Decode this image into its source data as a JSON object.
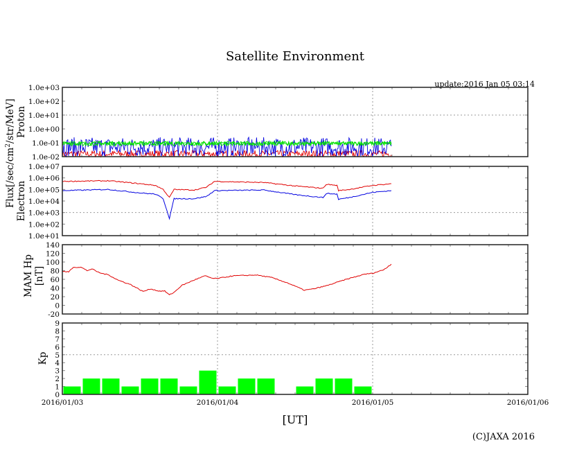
{
  "title": "Satellite Environment",
  "update": "update:2016 Jan 05 03:14",
  "copyright": "(C)JAXA 2016",
  "xlabel": "[UT]",
  "ylabel_flux": "Flux[/sec/cm",
  "ylabel_flux_sup": "2",
  "ylabel_flux_tail": "/str/MeV]",
  "colors": {
    "red": "#e00000",
    "blue": "#0000e0",
    "green": "#00e000",
    "kp": "#00ff00"
  },
  "chart_data": [
    {
      "type": "line",
      "name": "proton",
      "ylabel": "Proton",
      "yscale": "log",
      "ylim": [
        0.01,
        1000
      ],
      "yticks": [
        "1.0e-02",
        "1.0e-01",
        "1.0e+00",
        "1.0e+01",
        "1.0e+02",
        "1.0e+03"
      ],
      "xlim_days": [
        0,
        3
      ],
      "series": [
        {
          "name": "green",
          "color": "#00e000",
          "log_level": -1.05,
          "log_spread": 0.15,
          "end_day": 2.12
        },
        {
          "name": "blue",
          "color": "#0000e0",
          "log_level": -1.3,
          "log_spread": 0.7,
          "end_day": 2.12
        },
        {
          "name": "red",
          "color": "#e00000",
          "log_level": -1.8,
          "log_spread": 0.25,
          "end_day": 2.12
        }
      ]
    },
    {
      "type": "line",
      "name": "electron",
      "ylabel": "Electron",
      "yscale": "log",
      "ylim": [
        10,
        10000000
      ],
      "yticks": [
        "1.0e+01",
        "1.0e+02",
        "1.0e+03",
        "1.0e+04",
        "1.0e+05",
        "1.0e+06",
        "1.0e+07"
      ],
      "series": [
        {
          "name": "red",
          "color": "#e00000",
          "points_log": [
            [
              0,
              5.7
            ],
            [
              0.3,
              5.75
            ],
            [
              0.5,
              5.5
            ],
            [
              0.6,
              5.35
            ],
            [
              0.65,
              5.0
            ],
            [
              0.69,
              4.3
            ],
            [
              0.72,
              5.0
            ],
            [
              0.85,
              4.95
            ],
            [
              0.93,
              5.2
            ],
            [
              0.98,
              5.7
            ],
            [
              1.3,
              5.6
            ],
            [
              1.5,
              5.3
            ],
            [
              1.68,
              5.1
            ],
            [
              1.7,
              5.45
            ],
            [
              1.77,
              5.35
            ],
            [
              1.78,
              4.9
            ],
            [
              1.85,
              5.0
            ],
            [
              2.0,
              5.35
            ],
            [
              2.12,
              5.5
            ]
          ]
        },
        {
          "name": "blue",
          "color": "#0000e0",
          "points_log": [
            [
              0,
              4.9
            ],
            [
              0.3,
              5.0
            ],
            [
              0.5,
              4.7
            ],
            [
              0.6,
              4.6
            ],
            [
              0.65,
              4.2
            ],
            [
              0.69,
              2.5
            ],
            [
              0.72,
              4.2
            ],
            [
              0.85,
              4.2
            ],
            [
              0.93,
              4.4
            ],
            [
              0.98,
              4.9
            ],
            [
              1.3,
              4.95
            ],
            [
              1.5,
              4.55
            ],
            [
              1.68,
              4.3
            ],
            [
              1.7,
              4.65
            ],
            [
              1.77,
              4.6
            ],
            [
              1.78,
              4.15
            ],
            [
              1.85,
              4.3
            ],
            [
              2.0,
              4.75
            ],
            [
              2.12,
              4.9
            ]
          ]
        }
      ]
    },
    {
      "type": "line",
      "name": "mam_hp",
      "ylabel": "MAM Hp",
      "ylabel2": "[nT]",
      "ylim": [
        -20,
        140
      ],
      "yticks": [
        "-20",
        "0",
        "20",
        "40",
        "60",
        "80",
        "100",
        "120",
        "140"
      ],
      "series": [
        {
          "name": "Hp",
          "color": "#e00000",
          "points": [
            [
              0,
              78
            ],
            [
              0.04,
              77
            ],
            [
              0.07,
              88
            ],
            [
              0.12,
              88
            ],
            [
              0.16,
              80
            ],
            [
              0.19,
              84
            ],
            [
              0.24,
              75
            ],
            [
              0.3,
              70
            ],
            [
              0.36,
              58
            ],
            [
              0.44,
              48
            ],
            [
              0.52,
              32
            ],
            [
              0.57,
              38
            ],
            [
              0.62,
              33
            ],
            [
              0.66,
              33
            ],
            [
              0.69,
              24
            ],
            [
              0.72,
              30
            ],
            [
              0.77,
              46
            ],
            [
              0.86,
              60
            ],
            [
              0.92,
              68
            ],
            [
              0.97,
              62
            ],
            [
              1.0,
              62
            ],
            [
              1.1,
              68
            ],
            [
              1.25,
              70
            ],
            [
              1.35,
              64
            ],
            [
              1.45,
              52
            ],
            [
              1.56,
              35
            ],
            [
              1.62,
              38
            ],
            [
              1.7,
              45
            ],
            [
              1.83,
              60
            ],
            [
              1.95,
              72
            ],
            [
              2.0,
              74
            ],
            [
              2.07,
              82
            ],
            [
              2.12,
              95
            ]
          ]
        }
      ]
    },
    {
      "type": "bar",
      "name": "kp",
      "ylabel": "Kp",
      "ylim": [
        0,
        9
      ],
      "yticks": [
        "0",
        "1",
        "2",
        "3",
        "4",
        "5",
        "6",
        "7",
        "8",
        "9"
      ],
      "interval_hours": 3,
      "values": [
        1,
        2,
        2,
        1,
        2,
        2,
        1,
        3,
        1,
        2,
        2,
        0,
        1,
        2,
        2,
        1
      ]
    }
  ],
  "xticks": [
    "2016/01/03",
    "2016/01/04",
    "2016/01/05",
    "2016/01/06"
  ]
}
